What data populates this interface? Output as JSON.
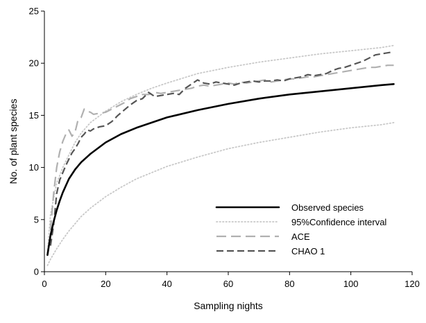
{
  "chart_data": {
    "type": "line",
    "title": "",
    "xlabel": "Sampling nights",
    "ylabel": "No. of plant species",
    "xlim": [
      0,
      120
    ],
    "ylim": [
      0,
      25
    ],
    "xticks": [
      0,
      20,
      40,
      60,
      80,
      100,
      120
    ],
    "yticks": [
      0,
      5,
      10,
      15,
      20,
      25
    ],
    "grid": false,
    "legend_position": "bottom-right",
    "series": [
      {
        "name": "Observed species",
        "style": "solid",
        "color": "#000000",
        "x": [
          1,
          2,
          3,
          4,
          5,
          6,
          8,
          10,
          12,
          15,
          20,
          25,
          30,
          40,
          50,
          60,
          70,
          80,
          90,
          100,
          110,
          114
        ],
        "y": [
          1.6,
          3.5,
          4.8,
          5.9,
          6.8,
          7.6,
          8.9,
          9.8,
          10.5,
          11.3,
          12.4,
          13.2,
          13.8,
          14.8,
          15.5,
          16.1,
          16.6,
          17.0,
          17.3,
          17.6,
          17.9,
          18.0
        ]
      },
      {
        "name": "95%Confidence interval",
        "style": "dotted",
        "color": "#c8c8c8",
        "x": [
          1,
          2,
          4,
          6,
          8,
          10,
          12,
          15,
          20,
          25,
          30,
          35,
          40,
          50,
          60,
          70,
          80,
          90,
          100,
          110,
          114
        ],
        "y": [
          1.8,
          5.5,
          8.5,
          10.0,
          11.2,
          12.4,
          13.3,
          14.3,
          15.4,
          16.3,
          17.0,
          17.6,
          18.1,
          19.0,
          19.6,
          20.1,
          20.5,
          20.9,
          21.2,
          21.5,
          21.7
        ]
      },
      {
        "name": "95%Confidence interval (lower)",
        "style": "dotted",
        "color": "#c8c8c8",
        "x": [
          1,
          2,
          4,
          6,
          8,
          10,
          12,
          15,
          20,
          25,
          30,
          40,
          50,
          60,
          70,
          80,
          90,
          100,
          110,
          114
        ],
        "y": [
          0.6,
          1.2,
          2.2,
          3.1,
          3.9,
          4.6,
          5.3,
          6.1,
          7.2,
          8.1,
          8.9,
          10.1,
          11.0,
          11.8,
          12.4,
          12.9,
          13.4,
          13.8,
          14.1,
          14.3
        ]
      },
      {
        "name": "ACE",
        "style": "long-dash",
        "color": "#b0b0b0",
        "x": [
          2,
          3,
          4,
          5,
          6,
          7,
          8,
          9,
          10,
          11,
          12,
          13,
          14,
          15,
          16,
          18,
          20,
          22,
          24,
          26,
          28,
          30,
          32,
          34,
          36,
          38,
          40,
          42,
          44,
          46,
          48,
          50,
          52,
          54,
          56,
          58,
          60,
          62,
          64,
          66,
          68,
          70,
          72,
          74,
          76,
          78,
          80,
          82,
          84,
          86,
          88,
          90,
          92,
          94,
          96,
          98,
          100,
          102,
          104,
          106,
          108,
          110,
          112,
          114
        ],
        "y": [
          4.0,
          7.5,
          10.0,
          11.5,
          12.5,
          13.2,
          13.6,
          13.0,
          13.4,
          14.6,
          14.8,
          15.6,
          15.4,
          15.3,
          15.1,
          15.2,
          15.3,
          15.6,
          15.9,
          16.2,
          16.6,
          16.8,
          17.0,
          17.0,
          17.2,
          17.1,
          17.2,
          17.3,
          17.4,
          17.5,
          17.6,
          17.8,
          17.9,
          17.8,
          17.9,
          18.0,
          18.1,
          18.0,
          18.2,
          18.1,
          18.2,
          18.3,
          18.4,
          18.2,
          18.3,
          18.4,
          18.5,
          18.5,
          18.6,
          18.7,
          18.7,
          18.8,
          18.9,
          19.0,
          19.1,
          19.2,
          19.3,
          19.4,
          19.5,
          19.6,
          19.6,
          19.7,
          19.8,
          19.8
        ]
      },
      {
        "name": "CHAO 1",
        "style": "dash",
        "color": "#555555",
        "x": [
          2,
          3,
          4,
          5,
          6,
          7,
          8,
          9,
          10,
          11,
          12,
          13,
          14,
          15,
          16,
          18,
          20,
          22,
          24,
          26,
          28,
          30,
          32,
          34,
          36,
          38,
          40,
          42,
          44,
          46,
          48,
          50,
          52,
          54,
          56,
          58,
          60,
          62,
          64,
          66,
          68,
          70,
          72,
          74,
          76,
          78,
          80,
          82,
          84,
          86,
          88,
          90,
          92,
          94,
          96,
          98,
          100,
          102,
          104,
          106,
          108,
          110,
          112,
          114
        ],
        "y": [
          2.5,
          4.5,
          7.5,
          8.8,
          9.5,
          10.2,
          10.8,
          11.4,
          11.8,
          12.3,
          12.9,
          13.2,
          13.6,
          13.5,
          13.7,
          13.9,
          14.0,
          14.4,
          15.0,
          15.5,
          16.0,
          16.4,
          16.6,
          17.2,
          16.8,
          16.9,
          17.0,
          17.1,
          17.0,
          17.6,
          18.0,
          18.4,
          18.1,
          18.0,
          18.2,
          18.1,
          18.0,
          17.9,
          18.1,
          18.2,
          18.3,
          18.2,
          18.3,
          18.3,
          18.4,
          18.3,
          18.5,
          18.6,
          18.7,
          18.9,
          18.8,
          18.9,
          19.0,
          19.3,
          19.5,
          19.6,
          19.8,
          20.0,
          20.2,
          20.5,
          20.8,
          20.9,
          21.0,
          21.1
        ]
      }
    ],
    "legend": [
      {
        "label": "Observed species",
        "style": "solid",
        "color": "#000000"
      },
      {
        "label": "95%Confidence interval",
        "style": "dotted",
        "color": "#c8c8c8"
      },
      {
        "label": "ACE",
        "style": "long-dash",
        "color": "#b0b0b0"
      },
      {
        "label": "CHAO 1",
        "style": "dash",
        "color": "#555555"
      }
    ]
  }
}
